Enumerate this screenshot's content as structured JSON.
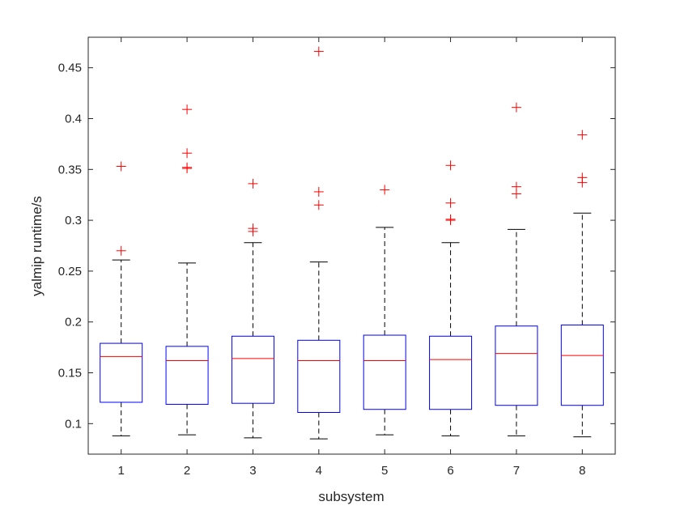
{
  "chart_data": {
    "type": "boxplot",
    "xlabel": "subsystem",
    "ylabel": "yalmip runtime/s",
    "ylim": [
      0.07,
      0.48
    ],
    "yticks": [
      0.1,
      0.15,
      0.2,
      0.25,
      0.3,
      0.35,
      0.4,
      0.45
    ],
    "ytick_labels": [
      "0.1",
      "0.15",
      "0.2",
      "0.25",
      "0.3",
      "0.35",
      "0.4",
      "0.45"
    ],
    "categories": [
      "1",
      "2",
      "3",
      "4",
      "5",
      "6",
      "7",
      "8"
    ],
    "boxes": [
      {
        "category": "1",
        "whisker_low": 0.088,
        "q1": 0.121,
        "median": 0.166,
        "q3": 0.179,
        "whisker_high": 0.261,
        "outliers": [
          0.27,
          0.353
        ]
      },
      {
        "category": "2",
        "whisker_low": 0.089,
        "q1": 0.119,
        "median": 0.162,
        "q3": 0.176,
        "whisker_high": 0.258,
        "outliers": [
          0.351,
          0.352,
          0.366,
          0.409
        ]
      },
      {
        "category": "3",
        "whisker_low": 0.086,
        "q1": 0.12,
        "median": 0.164,
        "q3": 0.186,
        "whisker_high": 0.278,
        "outliers": [
          0.289,
          0.292,
          0.336
        ]
      },
      {
        "category": "4",
        "whisker_low": 0.085,
        "q1": 0.111,
        "median": 0.162,
        "q3": 0.182,
        "whisker_high": 0.259,
        "outliers": [
          0.315,
          0.328,
          0.466
        ]
      },
      {
        "category": "5",
        "whisker_low": 0.089,
        "q1": 0.114,
        "median": 0.162,
        "q3": 0.187,
        "whisker_high": 0.293,
        "outliers": [
          0.33
        ]
      },
      {
        "category": "6",
        "whisker_low": 0.088,
        "q1": 0.114,
        "median": 0.163,
        "q3": 0.186,
        "whisker_high": 0.278,
        "outliers": [
          0.3,
          0.301,
          0.317,
          0.354
        ]
      },
      {
        "category": "7",
        "whisker_low": 0.088,
        "q1": 0.118,
        "median": 0.169,
        "q3": 0.196,
        "whisker_high": 0.291,
        "outliers": [
          0.326,
          0.333,
          0.411
        ]
      },
      {
        "category": "8",
        "whisker_low": 0.087,
        "q1": 0.118,
        "median": 0.167,
        "q3": 0.197,
        "whisker_high": 0.307,
        "outliers": [
          0.337,
          0.342,
          0.384
        ]
      }
    ],
    "colors": {
      "box": "#0000ff",
      "median": "#ff0000",
      "whisker": "#000000",
      "outlier": "#ff0000",
      "axes": "#262626"
    },
    "grid": false
  }
}
